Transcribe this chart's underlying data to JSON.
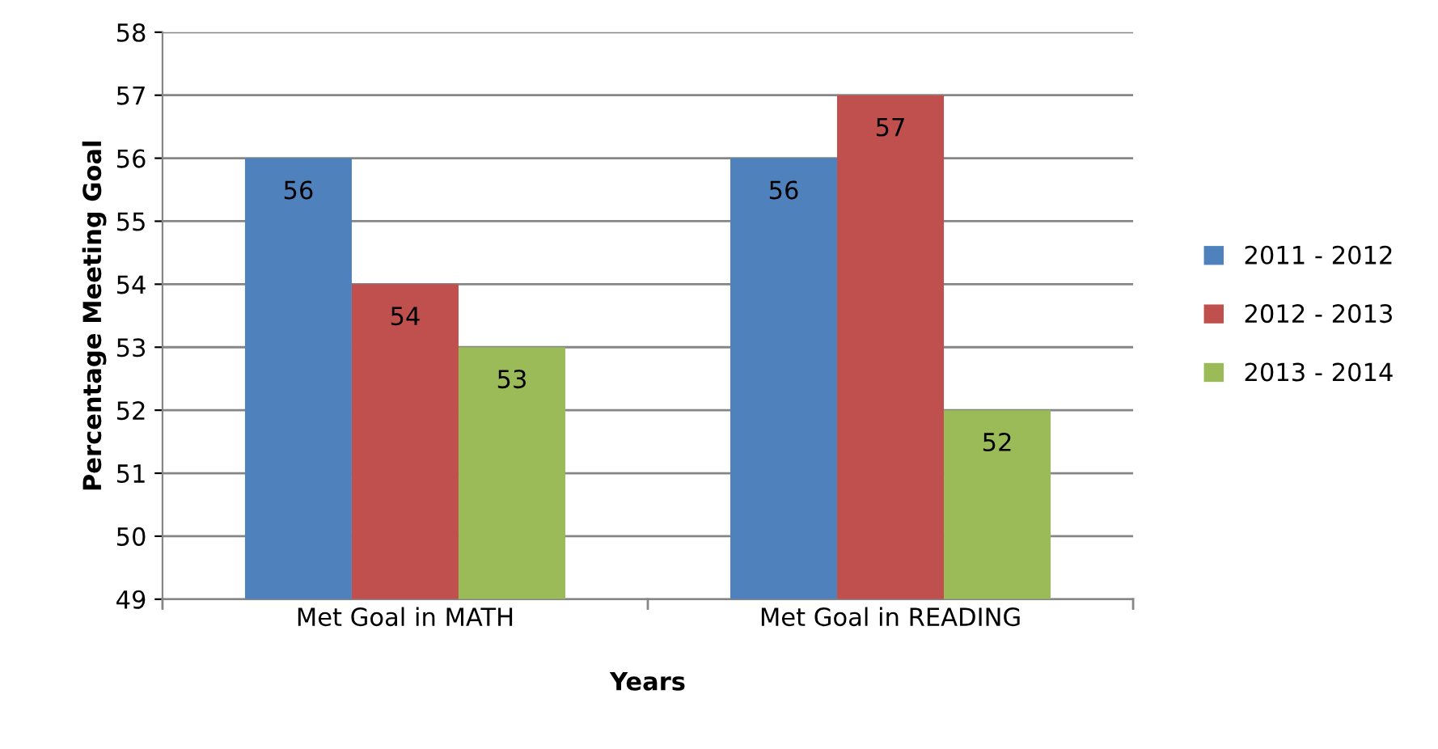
{
  "chart_data": {
    "type": "bar",
    "xlabel": "Years",
    "ylabel": "Percentage Meeting Goal",
    "categories": [
      "Met Goal in MATH",
      "Met Goal in READING"
    ],
    "series": [
      {
        "name": "2011 - 2012",
        "color": "#4f81bd",
        "values": [
          56,
          56
        ]
      },
      {
        "name": "2012 - 2013",
        "color": "#c0504d",
        "values": [
          54,
          57
        ]
      },
      {
        "name": "2013 - 2014",
        "color": "#9bbb59",
        "values": [
          53,
          52
        ]
      }
    ],
    "ylim": [
      49,
      58
    ],
    "yticks": [
      49,
      50,
      51,
      52,
      53,
      54,
      55,
      56,
      57,
      58
    ],
    "grid": "y",
    "legend": "right",
    "data_labels": true
  }
}
